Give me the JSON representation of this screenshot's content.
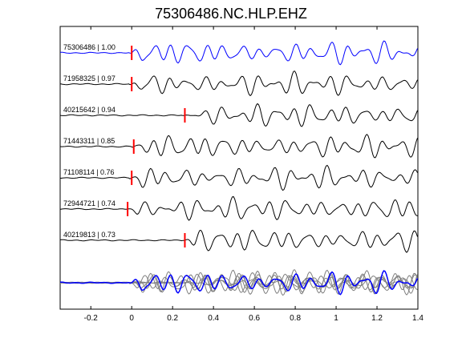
{
  "chart_data": {
    "type": "line",
    "title": "75306486.NC.HLP.EHZ",
    "xlabel": "",
    "ylabel": "",
    "xlim": [
      -0.35,
      1.4
    ],
    "grid": false,
    "x_ticks": [
      "-0.2",
      "0",
      "0.2",
      "0.4",
      "0.6",
      "0.8",
      "1",
      "1.2",
      "1.4"
    ],
    "x_tick_values": [
      -0.2,
      0,
      0.2,
      0.4,
      0.6,
      0.8,
      1.0,
      1.2,
      1.4
    ],
    "reference_color": "#0000ff",
    "trace_color": "#000000",
    "pick_color": "#ff0000",
    "overlay_color": "#808080",
    "traces": [
      {
        "label": "75306486 | 1.00",
        "id": "75306486",
        "correlation": 1.0,
        "pick_time": 0.0,
        "is_reference": true,
        "seed": 1
      },
      {
        "label": "71958325 | 0.97",
        "id": "71958325",
        "correlation": 0.97,
        "pick_time": 0.0,
        "is_reference": false,
        "seed": 2
      },
      {
        "label": "40215642 | 0.94",
        "id": "40215642",
        "correlation": 0.94,
        "pick_time": 0.26,
        "is_reference": false,
        "seed": 3
      },
      {
        "label": "71443311 | 0.85",
        "id": "71443311",
        "correlation": 0.85,
        "pick_time": 0.01,
        "is_reference": false,
        "seed": 4
      },
      {
        "label": "71108114 | 0.76",
        "id": "71108114",
        "correlation": 0.76,
        "pick_time": 0.0,
        "is_reference": false,
        "seed": 5
      },
      {
        "label": "72944721 | 0.74",
        "id": "72944721",
        "correlation": 0.74,
        "pick_time": -0.02,
        "is_reference": false,
        "seed": 6
      },
      {
        "label": "40219813 | 0.73",
        "id": "40219813",
        "correlation": 0.73,
        "pick_time": 0.26,
        "is_reference": false,
        "seed": 7
      }
    ]
  }
}
